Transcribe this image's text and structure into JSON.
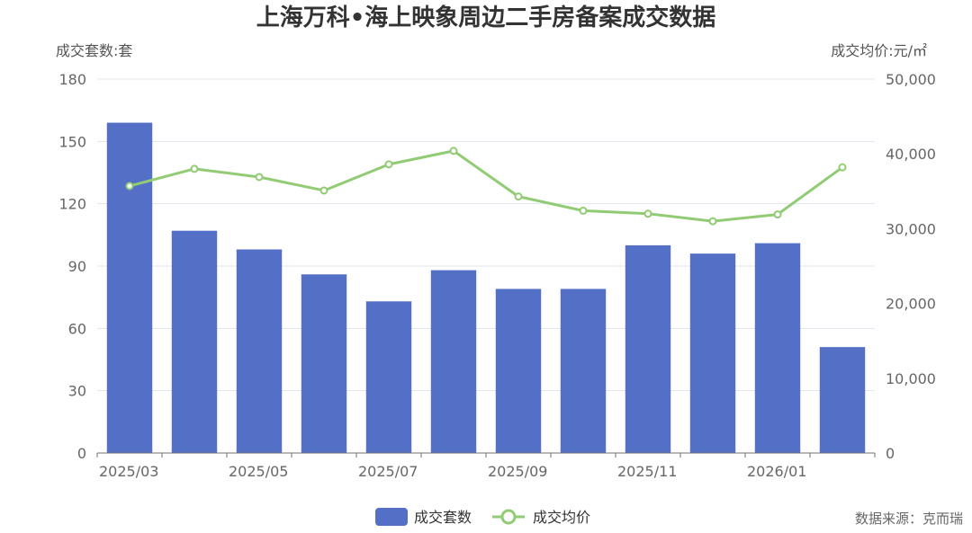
{
  "chart_data": {
    "type": "bar+line",
    "title": "上海万科•海上映象周边二手房备案成交数据",
    "y_left_label": "成交套数:套",
    "y_right_label": "成交均价:元/㎡",
    "y_left_ticks": [
      "0",
      "30",
      "60",
      "90",
      "120",
      "150",
      "180"
    ],
    "y_right_ticks": [
      "0",
      "10,000",
      "20,000",
      "30,000",
      "40,000",
      "50,000"
    ],
    "y_left_lim": [
      0,
      180
    ],
    "y_right_lim": [
      0,
      50000
    ],
    "categories": [
      "2025/03",
      "2025/04",
      "2025/05",
      "2025/06",
      "2025/07",
      "2025/08",
      "2025/09",
      "2025/10",
      "2025/11",
      "2025/12",
      "2026/01",
      "2026/02"
    ],
    "x_tick_labels": [
      "2025/03",
      "",
      "2025/05",
      "",
      "2025/07",
      "",
      "2025/09",
      "",
      "2025/11",
      "",
      "2026/01",
      ""
    ],
    "series": [
      {
        "name": "成交套数",
        "type": "bar",
        "axis": "left",
        "color": "#5470c6",
        "values": [
          159,
          107,
          98,
          86,
          73,
          88,
          79,
          79,
          100,
          96,
          101,
          51
        ]
      },
      {
        "name": "成交均价",
        "type": "line",
        "axis": "right",
        "color": "#91cc75",
        "values": [
          35700,
          38000,
          36900,
          35100,
          38600,
          40400,
          34300,
          32400,
          32000,
          31000,
          31900,
          38200
        ]
      }
    ],
    "grid": true,
    "legend_position": "bottom-center"
  },
  "source": "数据来源：克而瑞"
}
